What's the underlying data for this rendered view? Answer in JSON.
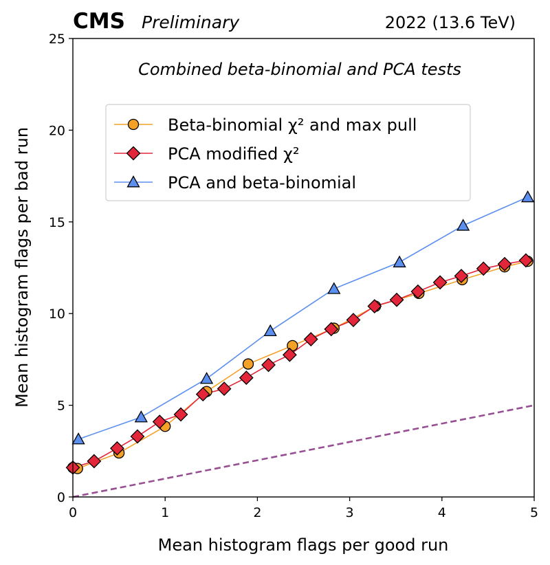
{
  "chart_data": {
    "type": "line",
    "experiment": "CMS",
    "status": "Preliminary",
    "run_info": "2022 (13.6 TeV)",
    "annotation": "Combined beta-binomial and PCA tests",
    "xlabel": "Mean histogram flags per good run",
    "ylabel": "Mean histogram flags per bad run",
    "xlim": [
      0,
      5
    ],
    "ylim": [
      0,
      25
    ],
    "xticks": [
      0,
      1,
      2,
      3,
      4,
      5
    ],
    "yticks": [
      0,
      5,
      10,
      15,
      20,
      25
    ],
    "grid": false,
    "legend_position": "upper-left",
    "series": [
      {
        "name": "Beta-binomial χ² and max pull",
        "marker": "circle",
        "color": "#f4a128",
        "x": [
          0.0,
          0.05,
          0.5,
          1.0,
          1.45,
          1.9,
          2.38,
          2.83,
          3.28,
          3.75,
          4.22,
          4.68,
          4.93
        ],
        "y": [
          1.6,
          1.55,
          2.4,
          3.85,
          5.75,
          7.25,
          8.25,
          9.2,
          10.4,
          11.1,
          11.85,
          12.55,
          12.85
        ]
      },
      {
        "name": "PCA modified χ²",
        "marker": "diamond",
        "color": "#e3263a",
        "x": [
          0.0,
          0.23,
          0.48,
          0.7,
          0.94,
          1.17,
          1.41,
          1.64,
          1.88,
          2.12,
          2.35,
          2.58,
          2.8,
          3.04,
          3.27,
          3.51,
          3.74,
          3.98,
          4.21,
          4.45,
          4.68,
          4.91
        ],
        "y": [
          1.6,
          1.95,
          2.65,
          3.3,
          4.1,
          4.5,
          5.6,
          5.9,
          6.5,
          7.2,
          7.75,
          8.6,
          9.15,
          9.65,
          10.4,
          10.75,
          11.2,
          11.7,
          12.05,
          12.45,
          12.7,
          12.9
        ]
      },
      {
        "name": "PCA and beta-binomial",
        "marker": "triangle",
        "color": "#5b8ff0",
        "x": [
          0.06,
          0.74,
          1.45,
          2.14,
          2.83,
          3.54,
          4.23,
          4.93
        ],
        "y": [
          3.15,
          4.35,
          6.45,
          9.05,
          11.35,
          12.8,
          14.8,
          16.35
        ]
      },
      {
        "marker": "none",
        "line_style": "dashed",
        "color": "#964f92",
        "x": [
          0,
          5
        ],
        "y": [
          0,
          5
        ]
      }
    ]
  }
}
